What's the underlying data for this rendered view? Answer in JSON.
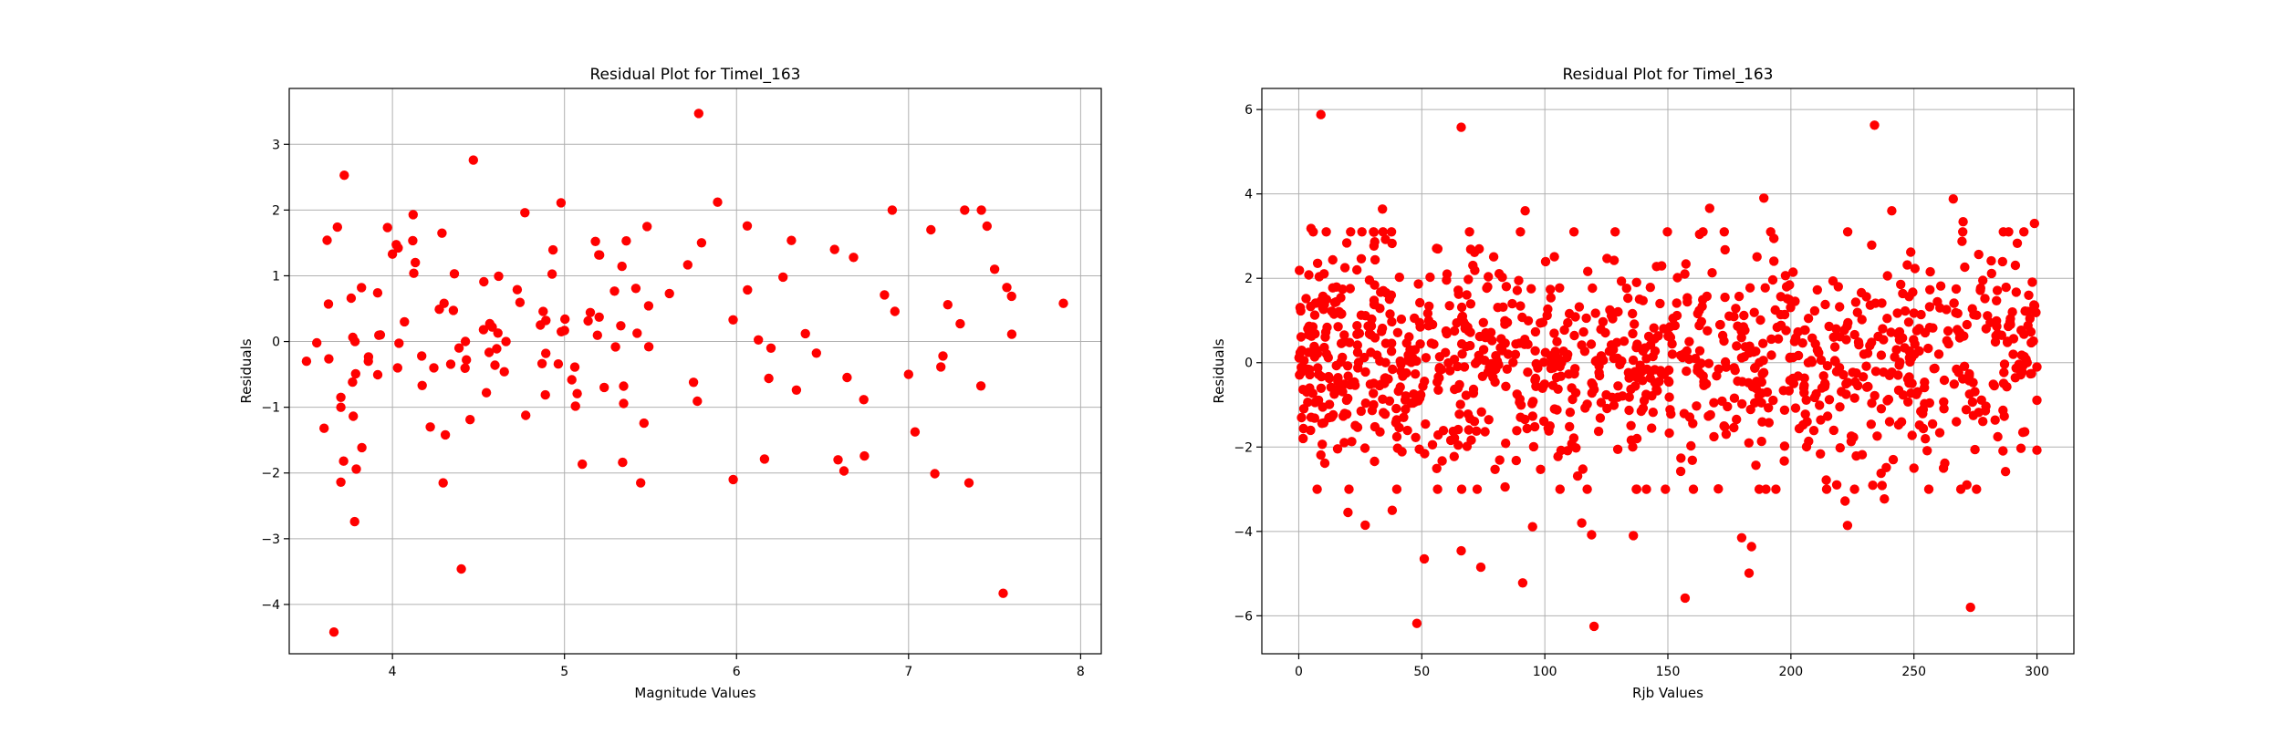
{
  "chart_data": [
    {
      "type": "scatter",
      "title": "Residual Plot for TimeI_163",
      "xlabel": "Magnitude Values",
      "ylabel": "Residuals",
      "xlim": [
        3.4,
        8.12
      ],
      "ylim": [
        -4.75,
        3.85
      ],
      "xticks": [
        4,
        5,
        6,
        7,
        8
      ],
      "yticks": [
        -4,
        -3,
        -2,
        -1,
        0,
        1,
        2,
        3
      ],
      "grid": true,
      "marker_color": "#ff0000",
      "seed": 163,
      "count": 165,
      "points": [
        [
          3.66,
          -4.42
        ],
        [
          3.72,
          2.53
        ],
        [
          5.78,
          3.47
        ],
        [
          4.47,
          2.76
        ],
        [
          7.55,
          -3.83
        ],
        [
          4.4,
          -3.46
        ],
        [
          3.78,
          -2.74
        ],
        [
          3.7,
          -2.14
        ],
        [
          4.98,
          2.11
        ],
        [
          5.89,
          2.12
        ],
        [
          4.77,
          1.96
        ],
        [
          3.5,
          -0.3
        ],
        [
          3.56,
          -0.02
        ],
        [
          3.62,
          1.54
        ],
        [
          3.68,
          1.74
        ],
        [
          3.7,
          -0.85
        ],
        [
          3.7,
          -1.0
        ],
        [
          3.76,
          0.66
        ],
        [
          3.79,
          -1.94
        ],
        [
          3.82,
          0.82
        ],
        [
          3.86,
          -0.3
        ],
        [
          3.93,
          0.1
        ],
        [
          4.0,
          1.33
        ],
        [
          4.03,
          -0.4
        ],
        [
          4.07,
          0.3
        ],
        [
          4.12,
          1.93
        ],
        [
          4.17,
          -0.22
        ],
        [
          4.22,
          -1.3
        ],
        [
          4.3,
          0.58
        ],
        [
          4.36,
          1.03
        ],
        [
          4.43,
          -0.28
        ],
        [
          4.58,
          0.22
        ],
        [
          4.66,
          0.0
        ],
        [
          4.86,
          0.25
        ],
        [
          5.15,
          0.44
        ],
        [
          5.48,
          1.75
        ],
        [
          5.61,
          0.73
        ],
        [
          5.75,
          -0.62
        ],
        [
          5.98,
          0.33
        ],
        [
          6.2,
          -0.1
        ],
        [
          6.27,
          0.98
        ],
        [
          6.4,
          0.12
        ],
        [
          6.57,
          1.4
        ],
        [
          6.59,
          -1.8
        ],
        [
          6.68,
          1.28
        ],
        [
          6.86,
          0.71
        ],
        [
          7.0,
          -0.5
        ],
        [
          7.13,
          1.7
        ],
        [
          7.2,
          -0.22
        ],
        [
          7.3,
          0.27
        ],
        [
          7.5,
          1.1
        ],
        [
          7.6,
          0.11
        ],
        [
          7.9,
          0.58
        ]
      ]
    },
    {
      "type": "scatter",
      "title": "Residual Plot for TimeI_163",
      "xlabel": "Rjb Values",
      "ylabel": "Residuals",
      "xlim": [
        -15,
        315
      ],
      "ylim": [
        -6.9,
        6.5
      ],
      "xticks": [
        0,
        50,
        100,
        150,
        200,
        250,
        300
      ],
      "yticks": [
        -6,
        -4,
        -2,
        0,
        2,
        4,
        6
      ],
      "grid": true,
      "marker_color": "#ff0000",
      "seed": 9163,
      "count": 1150,
      "points": [
        [
          9,
          5.88
        ],
        [
          66,
          5.58
        ],
        [
          234,
          5.63
        ],
        [
          48,
          -6.18
        ],
        [
          120,
          -6.25
        ],
        [
          157,
          -5.58
        ],
        [
          273,
          -5.8
        ],
        [
          51,
          -4.65
        ],
        [
          66,
          -4.46
        ],
        [
          74,
          -4.85
        ],
        [
          91,
          -5.22
        ],
        [
          95,
          -3.89
        ],
        [
          119,
          -4.08
        ],
        [
          136,
          -4.1
        ],
        [
          180,
          -4.15
        ],
        [
          184,
          -4.36
        ],
        [
          183,
          -4.99
        ],
        [
          223,
          -3.86
        ],
        [
          222,
          -3.28
        ],
        [
          238,
          -3.23
        ],
        [
          189,
          3.9
        ],
        [
          266,
          3.88
        ],
        [
          34,
          3.64
        ],
        [
          92,
          3.6
        ],
        [
          167,
          3.66
        ],
        [
          241,
          3.6
        ],
        [
          270,
          3.34
        ],
        [
          3,
          1.52
        ],
        [
          5,
          3.18
        ],
        [
          12,
          0.12
        ],
        [
          20,
          -3.55
        ],
        [
          27,
          -3.85
        ],
        [
          31,
          2.44
        ],
        [
          38,
          -3.5
        ],
        [
          115,
          -3.8
        ],
        [
          250,
          -2.5
        ],
        [
          262,
          -2.5
        ],
        [
          283,
          -1.36
        ],
        [
          290,
          1.2
        ],
        [
          295,
          -1.64
        ],
        [
          296,
          0.0
        ],
        [
          299,
          3.3
        ],
        [
          300,
          -0.1
        ],
        [
          292,
          2.83
        ],
        [
          284,
          0.68
        ],
        [
          278,
          1.95
        ],
        [
          281,
          0.95
        ]
      ]
    }
  ]
}
